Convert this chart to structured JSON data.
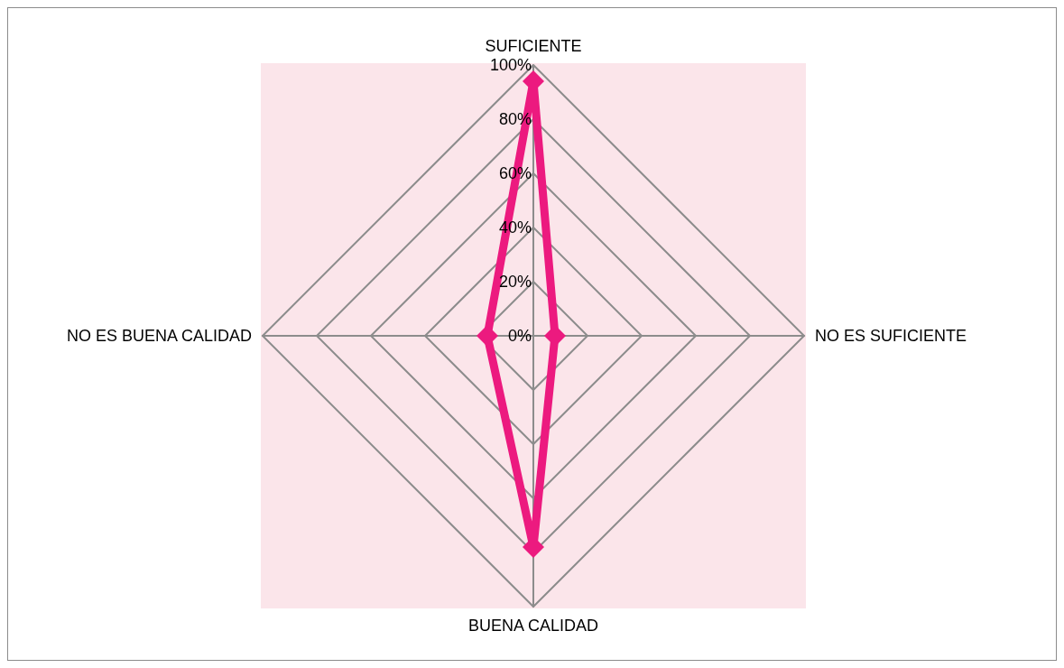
{
  "chart_data": {
    "type": "radar",
    "categories": [
      "SUFICIENTE",
      "NO ES SUFICIENTE",
      "BUENA CALIDAD",
      "NO ES BUENA CALIDAD"
    ],
    "series": [
      {
        "color": "#ec1a7f",
        "values": [
          94,
          8,
          78,
          17
        ]
      }
    ],
    "ylim": [
      0,
      100
    ],
    "yticks": [
      {
        "value": 0,
        "label": "0%"
      },
      {
        "value": 20,
        "label": "20%"
      },
      {
        "value": 40,
        "label": "40%"
      },
      {
        "value": 60,
        "label": "60%"
      },
      {
        "value": 80,
        "label": "80%"
      },
      {
        "value": 100,
        "label": "100%"
      }
    ],
    "grid": true,
    "marker": "diamond",
    "line_style": "solid"
  }
}
